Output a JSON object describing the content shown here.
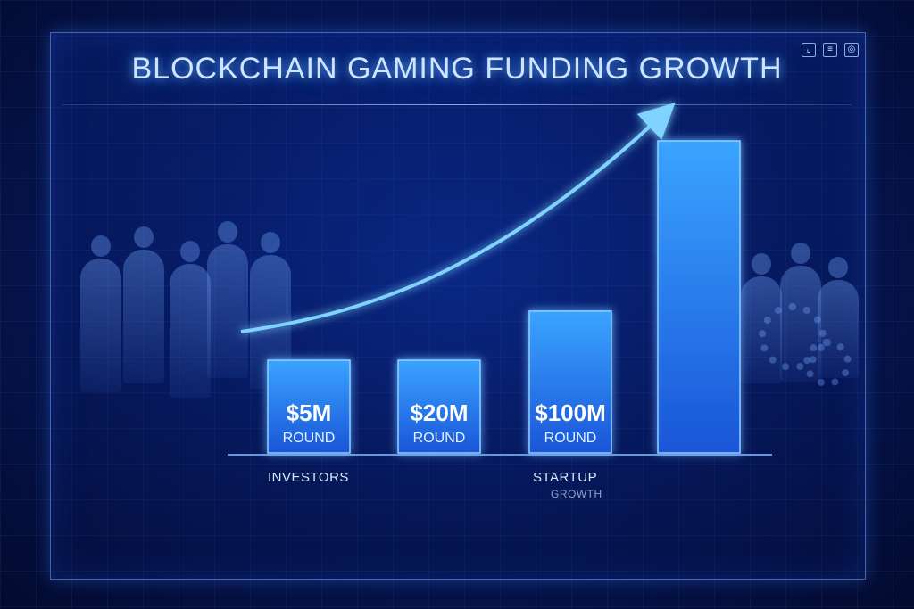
{
  "title": "BLOCKCHAIN GAMING FUNDING GROWTH",
  "chart_data": {
    "type": "bar",
    "categories": [
      "$5M ROUND",
      "$20M ROUND",
      "$100M ROUND",
      ""
    ],
    "values": [
      5,
      20,
      100,
      220
    ],
    "bar_labels": [
      {
        "amount": "$5M",
        "unit": "ROUND"
      },
      {
        "amount": "$20M",
        "unit": "ROUND"
      },
      {
        "amount": "$100M",
        "unit": "ROUND"
      },
      {
        "amount": "",
        "unit": ""
      }
    ],
    "title": "BLOCKCHAIN GAMING FUNDING GROWTH",
    "trend": "up",
    "colors": {
      "bar": "#2f8bff",
      "bar_glow": "#58c4ff",
      "arrow": "#7fd3ff"
    }
  },
  "annotations": {
    "investors": "INVESTORS",
    "startup": "STARTUP",
    "growth": "GROWTH"
  },
  "toolbar_icons": [
    "chart-icon",
    "document-icon",
    "globe-icon"
  ]
}
